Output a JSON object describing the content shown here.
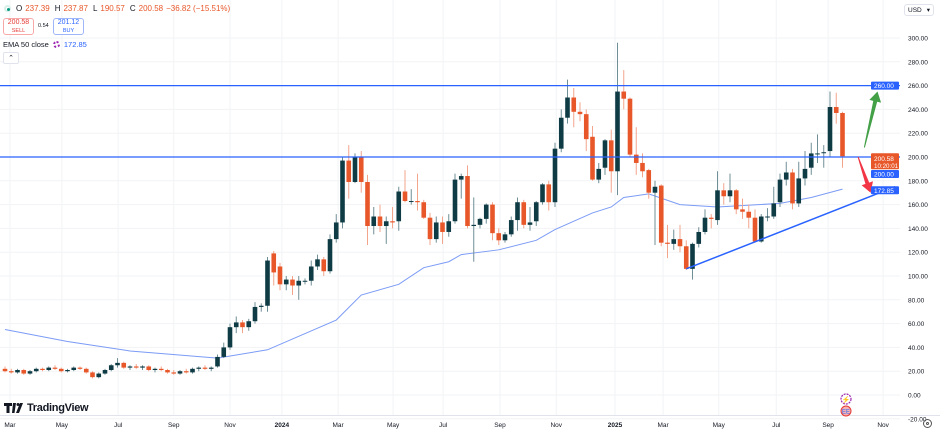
{
  "legend": {
    "o_label": "O",
    "o": "237.39",
    "h_label": "H",
    "h": "237.87",
    "l_label": "L",
    "l": "190.57",
    "c_label": "C",
    "c": "200.58",
    "change": "−36.82 (−15.51%)"
  },
  "trade": {
    "sell_price": "200.58",
    "sell_label": "SELL",
    "spread": "0.54",
    "buy_price": "201.12",
    "buy_label": "BUY"
  },
  "indicator": {
    "name": "EMA 50 close",
    "value": "172.85"
  },
  "collapse_icon": "chevron-up-icon",
  "currency": "USD",
  "brand": "TradingView",
  "colors": {
    "up": "#0f3b45",
    "down": "#e8572a",
    "up_wick": "#6f8f96",
    "down_wick": "#f3a58c",
    "ema": "#7b9bf5",
    "level": "#2962ff",
    "green_arrow": "#43a047",
    "red_arrow": "#f23645"
  },
  "chart_data": {
    "type": "candlestick",
    "interval": "weekly",
    "ylim": [
      -20,
      305
    ],
    "y_ticks": [
      "300.00",
      "280.00",
      "260.00",
      "240.00",
      "220.00",
      "200.00",
      "180.00",
      "160.00",
      "140.00",
      "120.00",
      "100.00",
      "80.00",
      "60.00",
      "40.00",
      "20.00",
      "0.00",
      "-20.00"
    ],
    "y_tick_values": [
      300,
      280,
      260,
      240,
      220,
      200,
      180,
      160,
      140,
      120,
      100,
      80,
      60,
      40,
      20,
      0,
      -20
    ],
    "x_ticks": [
      {
        "label": "Mar",
        "week": 0.8
      },
      {
        "label": "May",
        "week": 9.1
      },
      {
        "label": "Jul",
        "week": 18.1
      },
      {
        "label": "Sep",
        "week": 27
      },
      {
        "label": "Nov",
        "week": 36
      },
      {
        "label": "2024",
        "week": 44.3,
        "bold": true
      },
      {
        "label": "Mar",
        "week": 53.3
      },
      {
        "label": "May",
        "week": 62.1
      },
      {
        "label": "Jul",
        "week": 70.1
      },
      {
        "label": "Sep",
        "week": 79.2
      },
      {
        "label": "Nov",
        "week": 88.2
      },
      {
        "label": "2025",
        "week": 97.6,
        "bold": true
      },
      {
        "label": "Mar",
        "week": 105.3
      },
      {
        "label": "May",
        "week": 114.2
      },
      {
        "label": "Jul",
        "week": 123.4
      },
      {
        "label": "Sep",
        "week": 131.7
      },
      {
        "label": "Nov",
        "week": 140.5
      }
    ],
    "ohlc": [
      [
        22,
        24,
        19,
        20
      ],
      [
        20,
        22,
        18,
        19
      ],
      [
        19,
        22,
        18,
        21
      ],
      [
        21,
        22,
        17,
        18
      ],
      [
        18,
        21,
        17,
        20
      ],
      [
        20,
        23,
        19,
        22
      ],
      [
        22,
        23,
        20,
        21
      ],
      [
        21,
        24,
        20,
        23
      ],
      [
        23,
        25,
        21,
        22
      ],
      [
        22,
        23,
        19,
        20
      ],
      [
        20,
        22,
        19,
        21
      ],
      [
        21,
        24,
        20,
        23
      ],
      [
        23,
        24,
        21,
        22
      ],
      [
        22,
        23,
        18,
        19
      ],
      [
        19,
        20,
        14,
        15
      ],
      [
        15,
        19,
        14,
        18
      ],
      [
        18,
        22,
        17,
        21
      ],
      [
        21,
        26,
        20,
        25
      ],
      [
        25,
        31,
        23,
        27
      ],
      [
        27,
        28,
        22,
        23
      ],
      [
        23,
        25,
        21,
        24
      ],
      [
        24,
        26,
        22,
        23
      ],
      [
        23,
        25,
        21,
        24
      ],
      [
        24,
        25,
        20,
        21
      ],
      [
        21,
        23,
        19,
        22
      ],
      [
        22,
        24,
        20,
        21
      ],
      [
        21,
        22,
        18,
        19
      ],
      [
        19,
        21,
        17,
        18
      ],
      [
        18,
        21,
        17,
        20
      ],
      [
        20,
        22,
        18,
        19
      ],
      [
        19,
        23,
        18,
        22
      ],
      [
        22,
        24,
        20,
        23
      ],
      [
        23,
        25,
        21,
        22
      ],
      [
        22,
        24,
        20,
        23
      ],
      [
        24,
        34,
        23,
        32
      ],
      [
        32,
        44,
        31,
        40
      ],
      [
        40,
        60,
        38,
        57
      ],
      [
        57,
        66,
        52,
        61
      ],
      [
        61,
        63,
        52,
        57
      ],
      [
        57,
        64,
        54,
        62
      ],
      [
        62,
        78,
        60,
        74
      ],
      [
        74,
        77,
        70,
        75
      ],
      [
        75,
        116,
        70,
        113
      ],
      [
        119,
        121,
        92,
        103
      ],
      [
        108,
        111,
        88,
        93
      ],
      [
        93,
        100,
        88,
        97
      ],
      [
        97,
        100,
        84,
        92
      ],
      [
        92,
        100,
        80,
        96
      ],
      [
        96,
        98,
        93,
        96
      ],
      [
        96,
        113,
        92,
        108
      ],
      [
        108,
        118,
        105,
        114
      ],
      [
        114,
        116,
        100,
        104
      ],
      [
        104,
        135,
        102,
        131
      ],
      [
        131,
        152,
        128,
        145
      ],
      [
        145,
        200,
        140,
        197
      ],
      [
        197,
        210,
        165,
        179
      ],
      [
        179,
        203,
        178,
        200
      ],
      [
        200,
        205,
        170,
        179
      ],
      [
        179,
        185,
        126,
        142
      ],
      [
        142,
        158,
        135,
        150
      ],
      [
        150,
        160,
        137,
        142
      ],
      [
        142,
        150,
        127,
        146
      ],
      [
        146,
        158,
        140,
        145
      ],
      [
        146,
        175,
        138,
        171
      ],
      [
        171,
        189,
        162,
        163
      ],
      [
        163,
        173,
        160,
        163
      ],
      [
        163,
        186,
        155,
        162
      ],
      [
        162,
        164,
        148,
        149
      ],
      [
        149,
        153,
        126,
        131
      ],
      [
        131,
        150,
        128,
        145
      ],
      [
        145,
        150,
        127,
        137
      ],
      [
        137,
        152,
        133,
        146
      ],
      [
        146,
        186,
        144,
        181
      ],
      [
        181,
        186,
        165,
        184
      ],
      [
        184,
        193,
        140,
        142
      ],
      [
        142,
        166,
        112,
        143
      ],
      [
        143,
        149,
        140,
        148
      ],
      [
        148,
        161,
        144,
        160
      ],
      [
        160,
        162,
        130,
        136
      ],
      [
        136,
        140,
        126,
        130
      ],
      [
        130,
        137,
        128,
        135
      ],
      [
        135,
        150,
        133,
        147
      ],
      [
        147,
        166,
        138,
        162
      ],
      [
        162,
        164,
        140,
        143
      ],
      [
        143,
        158,
        138,
        145
      ],
      [
        146,
        163,
        142,
        162
      ],
      [
        162,
        178,
        160,
        177
      ],
      [
        177,
        180,
        155,
        162
      ],
      [
        162,
        212,
        158,
        207
      ],
      [
        207,
        240,
        204,
        233
      ],
      [
        233,
        265,
        228,
        250
      ],
      [
        250,
        258,
        225,
        238
      ],
      [
        238,
        246,
        230,
        236
      ],
      [
        236,
        240,
        205,
        215
      ],
      [
        217,
        226,
        180,
        181
      ],
      [
        181,
        195,
        178,
        190
      ],
      [
        191,
        215,
        185,
        214
      ],
      [
        214,
        223,
        170,
        188
      ],
      [
        188,
        296,
        168,
        255
      ],
      [
        255,
        273,
        240,
        249
      ],
      [
        249,
        250,
        200,
        202
      ],
      [
        202,
        225,
        185,
        195
      ],
      [
        195,
        203,
        183,
        188
      ],
      [
        189,
        190,
        165,
        170
      ],
      [
        170,
        180,
        126,
        175
      ],
      [
        176,
        177,
        125,
        128
      ],
      [
        128,
        143,
        115,
        127
      ],
      [
        127,
        139,
        122,
        131
      ],
      [
        131,
        143,
        120,
        125
      ],
      [
        125,
        130,
        105,
        106
      ],
      [
        106,
        128,
        97,
        127
      ],
      [
        127,
        141,
        124,
        137
      ],
      [
        137,
        156,
        135,
        149
      ],
      [
        149,
        152,
        140,
        148
      ],
      [
        147,
        188,
        143,
        172
      ],
      [
        172,
        178,
        160,
        167
      ],
      [
        167,
        186,
        162,
        172
      ],
      [
        172,
        173,
        152,
        156
      ],
      [
        156,
        165,
        148,
        154
      ],
      [
        154,
        160,
        140,
        149
      ],
      [
        149,
        156,
        129,
        129
      ],
      [
        129,
        152,
        128,
        150
      ],
      [
        150,
        157,
        146,
        150
      ],
      [
        150,
        175,
        148,
        161
      ],
      [
        162,
        186,
        158,
        181
      ],
      [
        181,
        196,
        176,
        187
      ],
      [
        187,
        190,
        156,
        161
      ],
      [
        161,
        196,
        158,
        182
      ],
      [
        182,
        205,
        176,
        190
      ],
      [
        191,
        212,
        185,
        203
      ],
      [
        203,
        219,
        195,
        203
      ],
      [
        204,
        210,
        191,
        204
      ],
      [
        205,
        255,
        200,
        242
      ],
      [
        242,
        254,
        228,
        237
      ],
      [
        237,
        238,
        191,
        200.58
      ]
    ],
    "ema50": [
      [
        0,
        55
      ],
      [
        10,
        45
      ],
      [
        20,
        37
      ],
      [
        34,
        31
      ],
      [
        42,
        38
      ],
      [
        53,
        63
      ],
      [
        57,
        84
      ],
      [
        63,
        93
      ],
      [
        67,
        107
      ],
      [
        71,
        112
      ],
      [
        73,
        118
      ],
      [
        79,
        122
      ],
      [
        85,
        130
      ],
      [
        88,
        139
      ],
      [
        94,
        153
      ],
      [
        97,
        158
      ],
      [
        99,
        166
      ],
      [
        103,
        169
      ],
      [
        108,
        160
      ],
      [
        114,
        158
      ],
      [
        124,
        161
      ],
      [
        129,
        166
      ],
      [
        134,
        173
      ]
    ],
    "horizontal_levels": [
      260,
      200
    ],
    "trendline": {
      "from": [
        109,
        106
      ],
      "to": [
        142.4,
        175
      ]
    },
    "arrows": [
      {
        "direction": "up",
        "from": [
          137.5,
          208
        ],
        "to": [
          139.6,
          255
        ]
      },
      {
        "direction": "down",
        "from": [
          136.5,
          200
        ],
        "to": [
          138.5,
          170
        ]
      }
    ],
    "price_badges": [
      {
        "value": "260.00",
        "price": 260,
        "kind": "level"
      },
      {
        "value": "200.58",
        "sub": "10:20:01",
        "price": 200.58,
        "kind": "last"
      },
      {
        "value": "200.00",
        "price": 200,
        "kind": "level"
      },
      {
        "value": "172.85",
        "price": 172.85,
        "kind": "ema"
      }
    ]
  }
}
